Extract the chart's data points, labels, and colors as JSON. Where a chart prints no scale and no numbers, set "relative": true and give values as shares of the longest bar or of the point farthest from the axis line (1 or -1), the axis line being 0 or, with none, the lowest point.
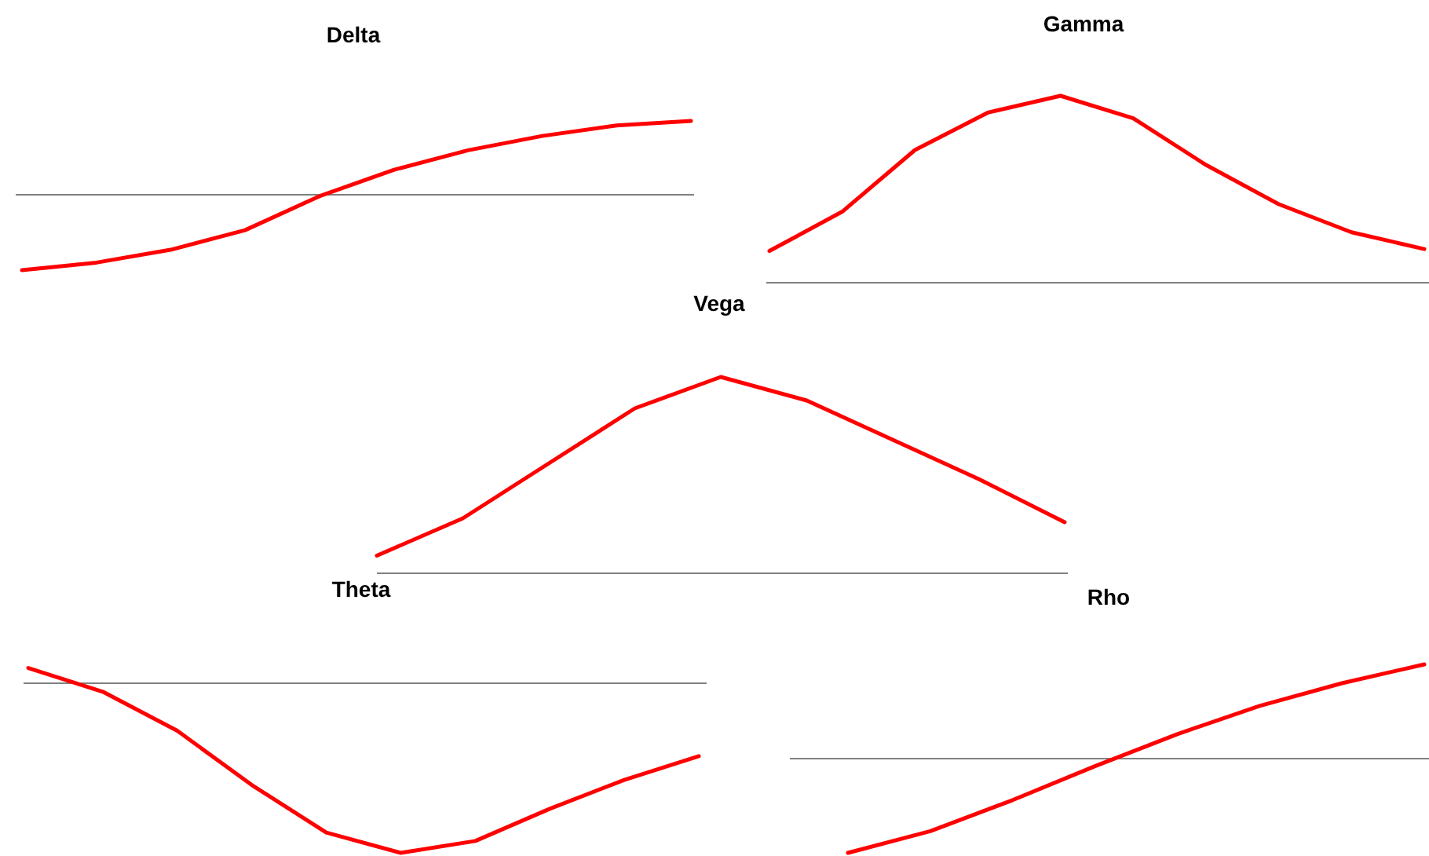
{
  "chart_data": [
    {
      "type": "line",
      "title": "Delta",
      "relative": true,
      "color": "#ff0000",
      "categories": [
        null,
        null,
        null,
        null,
        null,
        null,
        null,
        null,
        null,
        null
      ],
      "values": [
        -1,
        -0.9,
        -0.73,
        -0.47,
        -0.02,
        0.33,
        0.59,
        0.78,
        0.92,
        0.98
      ]
    },
    {
      "type": "line",
      "title": "Gamma",
      "relative": true,
      "color": "#ff0000",
      "categories": [
        null,
        null,
        null,
        null,
        null,
        null,
        null,
        null,
        null,
        null
      ],
      "values": [
        0.17,
        0.38,
        0.71,
        0.91,
        1,
        0.88,
        0.63,
        0.42,
        0.27,
        0.18
      ]
    },
    {
      "type": "line",
      "title": "Vega",
      "relative": true,
      "color": "#ff0000",
      "categories": [
        null,
        null,
        null,
        null,
        null,
        null,
        null,
        null,
        null
      ],
      "values": [
        0.09,
        0.28,
        0.56,
        0.84,
        1,
        0.88,
        0.68,
        0.48,
        0.26
      ]
    },
    {
      "type": "line",
      "title": "Theta",
      "relative": true,
      "color": "#ff0000",
      "categories": [
        null,
        null,
        null,
        null,
        null,
        null,
        null,
        null,
        null,
        null
      ],
      "values": [
        0.09,
        -0.05,
        -0.28,
        -0.6,
        -0.88,
        -1,
        -0.93,
        -0.74,
        -0.57,
        -0.43
      ]
    },
    {
      "type": "line",
      "title": "Rho",
      "relative": true,
      "color": "#ff0000",
      "categories": [
        null,
        null,
        null,
        null,
        null,
        null,
        null,
        null
      ],
      "values": [
        -1,
        -0.77,
        -0.44,
        -0.08,
        0.26,
        0.56,
        0.8,
        1
      ]
    }
  ]
}
